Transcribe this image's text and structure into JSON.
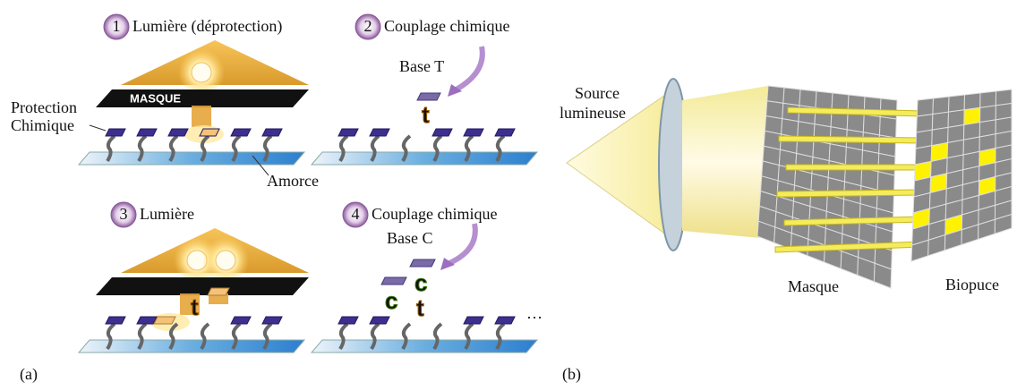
{
  "panel_a": {
    "label": "(a)",
    "steps": [
      {
        "number": "1",
        "title": "Lumière (déprotection)"
      },
      {
        "number": "2",
        "title": "Couplage chimique"
      },
      {
        "number": "3",
        "title": "Lumière"
      },
      {
        "number": "4",
        "title": "Couplage chimique"
      }
    ],
    "mask_label": "MASQUE",
    "protection_label": [
      "Protection",
      "Chimique"
    ],
    "primer_label": "Amorce",
    "base_t": "Base T",
    "base_c": "Base C",
    "nucleotide_t": "t",
    "nucleotide_c": "c",
    "ellipsis": "…"
  },
  "panel_b": {
    "label": "(b)",
    "source_label": [
      "Source",
      "lumineuse"
    ],
    "mask_label": "Masque",
    "chip_label": "Biopuce"
  }
}
